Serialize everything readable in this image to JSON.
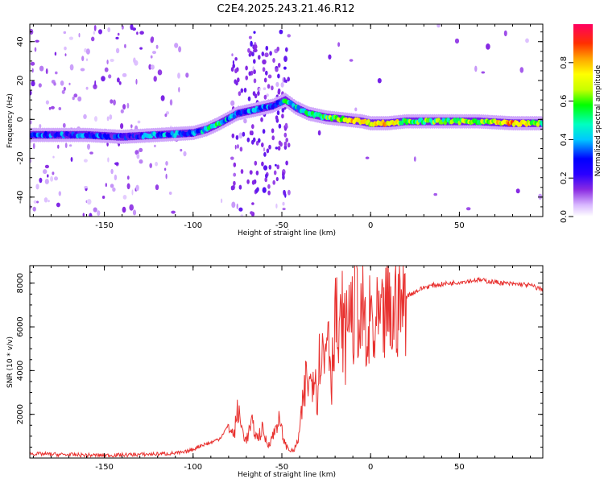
{
  "title": "C2E4.2025.243.21.46.R12",
  "chart_data": [
    {
      "type": "heatmap",
      "xlabel": "Height of straight line (km)",
      "ylabel": "Frequency (Hz)",
      "xlim": [
        -192,
        97
      ],
      "ylim": [
        -50,
        49
      ],
      "x_ticks": [
        -150,
        -100,
        -50,
        0,
        50
      ],
      "y_ticks": [
        -40,
        -20,
        0,
        20,
        40
      ],
      "colorbar": {
        "label": "Normalized spectral amplitude",
        "range": [
          0,
          1
        ],
        "ticks": [
          0.0,
          0.2,
          0.4,
          0.6,
          0.8
        ],
        "colors": [
          "#ffffff",
          "#d9b8ff",
          "#8a2be2",
          "#2a00ff",
          "#0000ff",
          "#00c8ff",
          "#00ffc0",
          "#00ff00",
          "#c8ff00",
          "#ffff00",
          "#ffa500",
          "#ff3000",
          "#ff0060"
        ]
      },
      "ridge": {
        "description_points_x": [
          -192,
          -160,
          -140,
          -120,
          -100,
          -92,
          -85,
          -75,
          -65,
          -55,
          -48,
          -42,
          -35,
          -25,
          -15,
          -5,
          0,
          10,
          20,
          40,
          60,
          80,
          97
        ],
        "frequency_hz": [
          -8,
          -8,
          -9,
          -8,
          -7,
          -5,
          -2,
          3,
          5,
          7,
          10,
          6,
          3,
          1,
          0,
          -1,
          -2,
          -2,
          -1,
          -1,
          -1,
          -2,
          -2
        ],
        "amplitude": [
          0.3,
          0.3,
          0.25,
          0.35,
          0.35,
          0.45,
          0.5,
          0.3,
          0.35,
          0.35,
          0.5,
          0.45,
          0.45,
          0.55,
          0.7,
          0.75,
          0.7,
          0.75,
          0.6,
          0.55,
          0.6,
          0.8,
          0.55
        ]
      },
      "grid": false
    },
    {
      "type": "line",
      "xlabel": "Height of straight line (km)",
      "ylabel": "SNR (10 * v/v)",
      "xlim": [
        -192,
        97
      ],
      "ylim": [
        0,
        8800
      ],
      "x_ticks": [
        -150,
        -100,
        -50,
        0,
        50
      ],
      "y_ticks": [
        2000,
        4000,
        6000,
        8000
      ],
      "series": [
        {
          "color": "#e8312f",
          "x": [
            -192,
            -170,
            -150,
            -130,
            -115,
            -105,
            -100,
            -95,
            -90,
            -85,
            -80,
            -77,
            -75,
            -72,
            -70,
            -67,
            -64,
            -61,
            -58,
            -55,
            -52,
            -50,
            -48,
            -46,
            -44,
            -42,
            -40,
            -38,
            -36,
            -34,
            -32,
            -30,
            -28,
            -26,
            -24,
            -22,
            -20,
            -18,
            -16,
            -14,
            -12,
            -10,
            -8,
            -6,
            -4,
            -2,
            0,
            2,
            4,
            6,
            8,
            10,
            12,
            14,
            16,
            18,
            20,
            25,
            30,
            35,
            40,
            45,
            50,
            55,
            60,
            65,
            70,
            75,
            80,
            85,
            90,
            97
          ],
          "y": [
            200,
            150,
            120,
            160,
            200,
            250,
            400,
            600,
            700,
            900,
            1500,
            1000,
            2200,
            1200,
            800,
            1600,
            900,
            1300,
            600,
            1000,
            1800,
            1200,
            600,
            400,
            300,
            500,
            1200,
            2500,
            3800,
            3200,
            4500,
            3000,
            5500,
            4200,
            6800,
            3500,
            7200,
            4800,
            6500,
            5200,
            7500,
            6000,
            8200,
            5500,
            7000,
            4300,
            6800,
            5200,
            6200,
            5800,
            6500,
            6800,
            6000,
            6900,
            7200,
            7000,
            7400,
            7600,
            7800,
            7900,
            7950,
            8000,
            8050,
            8100,
            8150,
            8100,
            8050,
            8000,
            7950,
            7950,
            7900,
            7700
          ]
        }
      ],
      "grid": false
    }
  ]
}
